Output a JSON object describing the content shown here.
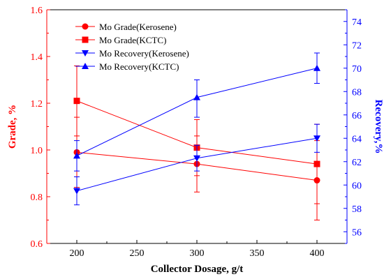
{
  "chart_data": {
    "type": "line",
    "title": "",
    "xlabel": "Collector Dosage, g/t",
    "ylabel_left": "Grade, %",
    "ylabel_right": "Recovery,%",
    "x": [
      200,
      300,
      400
    ],
    "x_ticks": [
      "200",
      "250",
      "300",
      "350",
      "400"
    ],
    "x_tick_values": [
      200,
      250,
      300,
      350,
      400
    ],
    "xlim": [
      175,
      425
    ],
    "ylim_left": [
      0.6,
      1.6
    ],
    "y_ticks_left": [
      "0.6",
      "0.8",
      "1.0",
      "1.2",
      "1.4",
      "1.6"
    ],
    "y_tick_values_left": [
      0.6,
      0.8,
      1.0,
      1.2,
      1.4,
      1.6
    ],
    "ylim_right": [
      55,
      75
    ],
    "y_ticks_right": [
      "56",
      "58",
      "60",
      "62",
      "64",
      "66",
      "68",
      "70",
      "72",
      "74"
    ],
    "y_tick_values_right": [
      56,
      58,
      60,
      62,
      64,
      66,
      68,
      70,
      72,
      74
    ],
    "legend_position": "top-left",
    "grid": false,
    "colors": {
      "grade": "#ff0000",
      "recovery": "#0000ff",
      "left_axis": "#ff0000",
      "right_axis": "#0000ff"
    },
    "series": [
      {
        "name": "Mo Grade(Kerosene)",
        "axis": "left",
        "marker": "circle",
        "color": "#ff0000",
        "values": [
          0.99,
          0.94,
          0.87
        ],
        "err_low": [
          0.84,
          0.82,
          0.7
        ],
        "err_high": [
          1.14,
          1.06,
          1.04
        ]
      },
      {
        "name": "Mo Grade(KCTC)",
        "axis": "left",
        "marker": "square",
        "color": "#ff0000",
        "values": [
          1.21,
          1.01,
          0.94
        ],
        "err_low": [
          1.06,
          0.89,
          0.77
        ],
        "err_high": [
          1.36,
          1.13,
          1.11
        ]
      },
      {
        "name": "Mo Recovery(Kerosene)",
        "axis": "right",
        "marker": "triangle-down",
        "color": "#0000ff",
        "values": [
          59.5,
          62.3,
          64.0
        ],
        "err_low": [
          58.3,
          61.2,
          62.8
        ],
        "err_high": [
          60.7,
          63.4,
          65.2
        ]
      },
      {
        "name": "Mo Recovery(KCTC)",
        "axis": "right",
        "marker": "triangle-up",
        "color": "#0000ff",
        "values": [
          62.5,
          67.5,
          70.0
        ],
        "err_low": [
          61.2,
          65.8,
          68.7
        ],
        "err_high": [
          63.8,
          69.0,
          71.3
        ]
      }
    ]
  }
}
